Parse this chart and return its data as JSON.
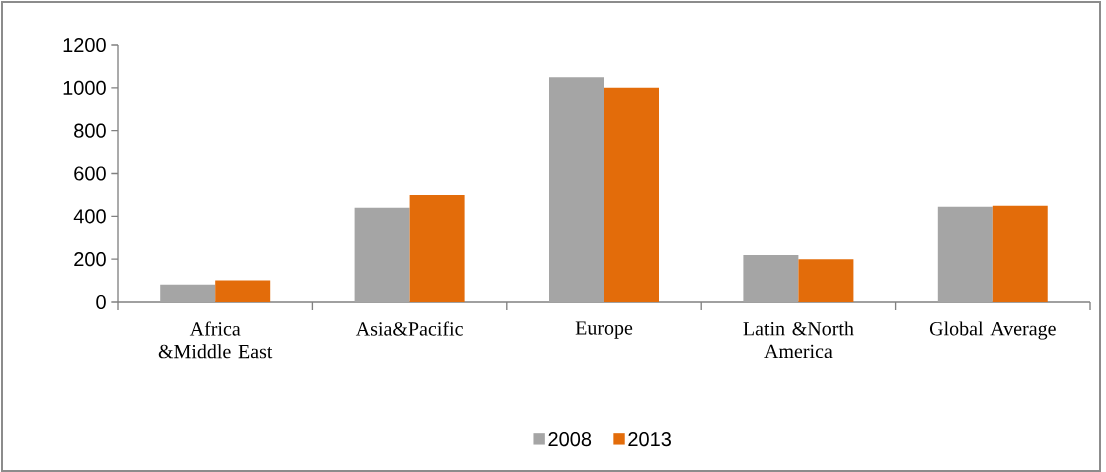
{
  "chart_data": {
    "type": "bar",
    "categories": [
      "Africa &Middle East",
      "Asia&Pacific",
      "Europe",
      "Latin &North America",
      "Global Average"
    ],
    "series": [
      {
        "name": "2008",
        "color": "#a5a5a5",
        "values": [
          80,
          440,
          1050,
          220,
          445
        ]
      },
      {
        "name": "2013",
        "color": "#e36c0a",
        "values": [
          100,
          500,
          1000,
          200,
          450
        ]
      }
    ],
    "ylim": [
      0,
      1200
    ],
    "yticks": [
      0,
      200,
      400,
      600,
      800,
      1000,
      1200
    ],
    "legend": "bottom"
  }
}
